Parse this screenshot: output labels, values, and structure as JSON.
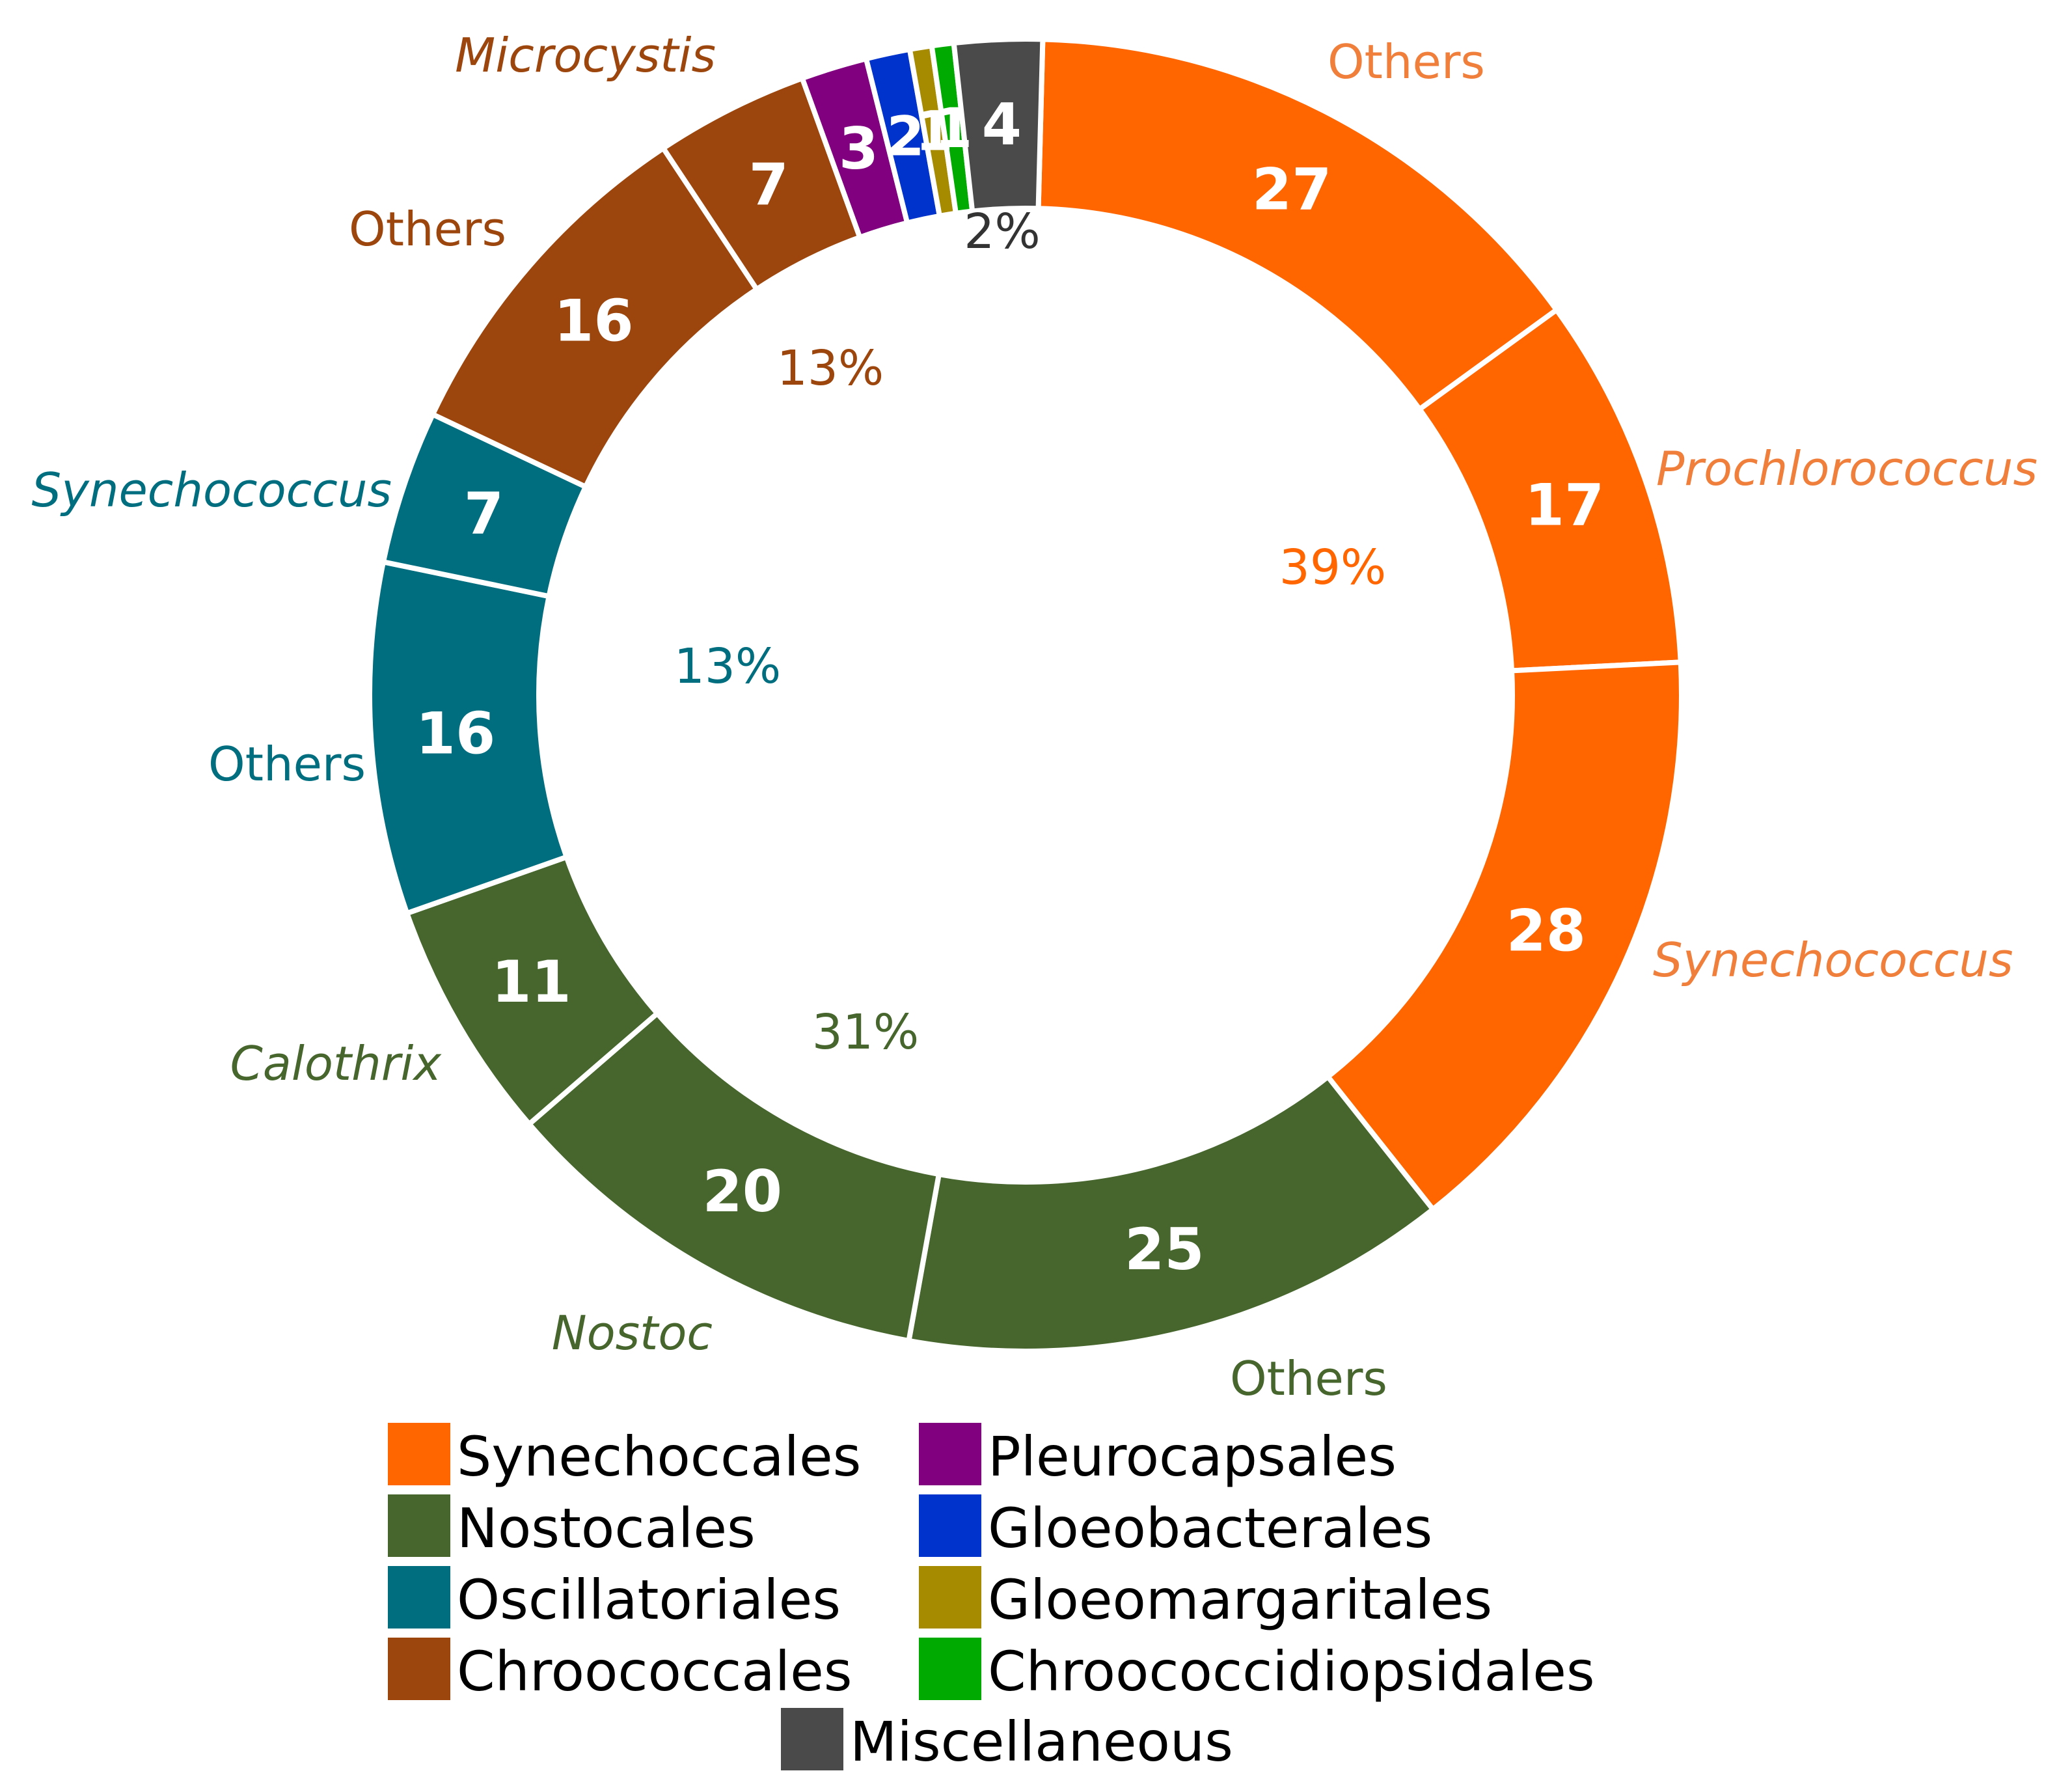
{
  "chart_data": {
    "type": "pie",
    "variant": "donut",
    "title": "",
    "slices": [
      {
        "order": "Synechoccales",
        "label": "Others",
        "italic": false,
        "value": 27
      },
      {
        "order": "Synechoccales",
        "label": "Prochlorococcus",
        "italic": true,
        "value": 17
      },
      {
        "order": "Synechoccales",
        "label": "Synechococcus",
        "italic": true,
        "value": 28
      },
      {
        "order": "Nostocales",
        "label": "Others",
        "italic": false,
        "value": 25
      },
      {
        "order": "Nostocales",
        "label": "Nostoc",
        "italic": true,
        "value": 20
      },
      {
        "order": "Nostocales",
        "label": "Calothrix",
        "italic": true,
        "value": 11
      },
      {
        "order": "Oscillatoriales",
        "label": "Others",
        "italic": false,
        "value": 16
      },
      {
        "order": "Oscillatoriales",
        "label": "Synechococcus",
        "italic": true,
        "value": 7
      },
      {
        "order": "Chroococcales",
        "label": "Others",
        "italic": false,
        "value": 16
      },
      {
        "order": "Chroococcales",
        "label": "Microcystis",
        "italic": true,
        "value": 7
      },
      {
        "order": "Pleurocapsales",
        "label": "",
        "italic": false,
        "value": 3
      },
      {
        "order": "Gloeobacterales",
        "label": "",
        "italic": false,
        "value": 2
      },
      {
        "order": "Gloeomargaritales",
        "label": "",
        "italic": false,
        "value": 1
      },
      {
        "order": "Chroococcidiopsidales",
        "label": "",
        "italic": false,
        "value": 1
      },
      {
        "order": "Miscellaneous",
        "label": "",
        "italic": false,
        "value": 4
      }
    ],
    "group_percentages": [
      {
        "order": "Synechoccales",
        "text": "39%"
      },
      {
        "order": "Nostocales",
        "text": "31%"
      },
      {
        "order": "Oscillatoriales",
        "text": "13%"
      },
      {
        "order": "Chroococcales",
        "text": "13%"
      },
      {
        "order": "Miscellaneous",
        "text": "2%"
      }
    ],
    "legend": [
      {
        "label": "Synechoccales",
        "color": "#ff6600"
      },
      {
        "label": "Nostocales",
        "color": "#46662d"
      },
      {
        "label": "Oscillatoriales",
        "color": "#006e7f"
      },
      {
        "label": "Chroococcales",
        "color": "#9c460d"
      },
      {
        "label": "Pleurocapsales",
        "color": "#800080"
      },
      {
        "label": "Gloeobacterales",
        "color": "#0033cc"
      },
      {
        "label": "Gloeomargaritales",
        "color": "#a68a00"
      },
      {
        "label": "Chroococcidiopsidales",
        "color": "#00aa00"
      },
      {
        "label": "Miscellaneous",
        "color": "#4a4a4a"
      }
    ],
    "legend_placement": "bottom",
    "colors": {
      "Synechoccales": "#ff6600",
      "Synechoccales_label": "#f07f3c",
      "Nostocales": "#46662d",
      "Oscillatoriales": "#006e7f",
      "Chroococcales": "#9c460d",
      "Pleurocapsales": "#800080",
      "Gloeobacterales": "#0033cc",
      "Gloeomargaritales": "#a68a00",
      "Chroococcidiopsidales": "#00aa00",
      "Miscellaneous": "#4a4a4a",
      "Miscellaneous_label": "#333333"
    }
  }
}
